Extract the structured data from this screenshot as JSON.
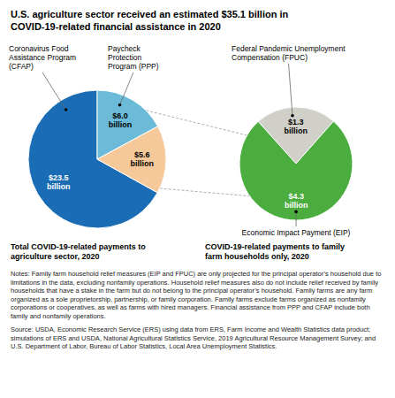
{
  "title": "U.S. agriculture sector received an estimated $35.1 billion in\nCOVID-19-related financial assistance in 2020",
  "annotations": [
    "Notes: Family farm household relief measures (EIP and FPUC) are only projected for the principal operator’s household due to limitations in the data, excluding nonfamily operations. Household relief measures also do not include relief received by family households that have a stake in the farm but do not belong to the principal operator’s household. Family farms are any farm organized as a sole proprietorship, partnership, or family corporation. Family farms exclude farms organized as nonfamily corporations or cooperatives, as well as farms with hired managers. Financial assistance from PPP and CFAP include both family and nonfamily operations.",
    "Source: USDA, Economic Research Service (ERS) using data from ERS, Farm Income and Wealth Statistics data product; simulations of ERS and USDA, National Agricultural Statistics Service, 2019 Agricultural Resource Management Survey; and U.S. Department of Labor, Bureau of Labor Statistics, Local Area Unemployment Statistics."
  ],
  "chart_data": [
    {
      "type": "pie",
      "subtitle": "Total COVID-19-related payments to\nagriculture sector, 2020",
      "categories": [
        "Coronavirus Food\nAssistance Program\n(CFAP)",
        "Paycheck\nProtection\nProgram (PPP)",
        null
      ],
      "values": [
        23.5,
        6.0,
        5.6
      ],
      "value_labels": [
        "$23.5\nbillion",
        "$6.0\nbillion",
        "$5.6\nbillion"
      ],
      "colors": [
        "#1a6db5",
        "#6bbbd8",
        "#f5c999"
      ],
      "data_labels": true
    },
    {
      "type": "pie",
      "subtitle": "COVID-19-related payments to family\nfarm households only, 2020",
      "categories": [
        "Federal Pandemic Unemployment\nCompensation (FPUC)",
        "Economic Impact Payment (EIP)"
      ],
      "values": [
        1.3,
        4.3
      ],
      "value_labels": [
        "$1.3\nbillion",
        "$4.3\nbillion"
      ],
      "colors": [
        "#d0cfc8",
        "#4cad3f"
      ],
      "data_labels": true
    }
  ]
}
